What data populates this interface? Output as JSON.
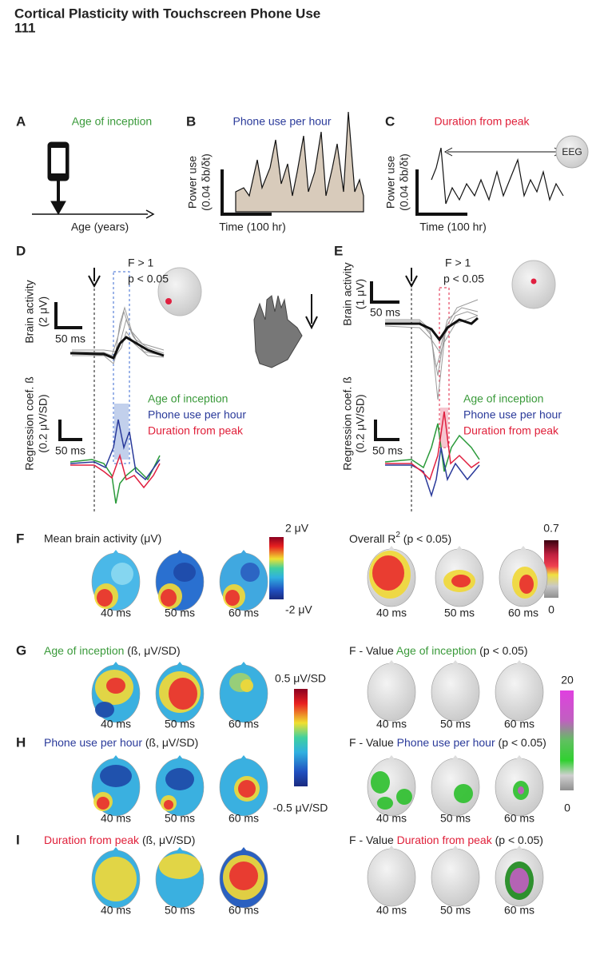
{
  "header": {
    "title": "Cortical Plasticity with Touchscreen Phone Use",
    "page": "111"
  },
  "panel_a": {
    "letter": "A",
    "title": "Age of inception",
    "x_label": "Age (years)"
  },
  "panel_b": {
    "letter": "B",
    "title": "Phone use per hour",
    "y_label": [
      "Power use",
      "(0.04 δb/δt)"
    ],
    "x_label": "Time (100 hr)"
  },
  "panel_c": {
    "letter": "C",
    "title": "Duration from peak",
    "y_label": [
      "Power use",
      "(0.04 δb/δt)"
    ],
    "x_label": "Time (100 hr)",
    "marker": "EEG"
  },
  "panel_d": {
    "letter": "D",
    "stats": [
      "F > 1",
      "p < 0.05"
    ],
    "brain_label": [
      "Brain activity",
      "(2 μV)"
    ],
    "brain_scale": "50 ms",
    "regression_label": [
      "Regression coef. ß",
      "(0.2 μV/SD)"
    ],
    "regression_scale": "50 ms",
    "legend": [
      "Age of inception",
      "Phone use per hour",
      "Duration from peak"
    ]
  },
  "panel_e": {
    "letter": "E",
    "stats": [
      "F > 1",
      "p < 0.05"
    ],
    "brain_label": [
      "Brain activity",
      "(1 μV)"
    ],
    "brain_scale": "50 ms",
    "regression_label": [
      "Regression coef. ß",
      "(0.2 μV/SD)"
    ],
    "regression_scale": "50 ms",
    "legend": [
      "Age of inception",
      "Phone use per hour",
      "Duration from peak"
    ]
  },
  "panel_f": {
    "letter": "F",
    "left_title": "Mean brain activity (μV)",
    "left_times": [
      "40 ms",
      "50 ms",
      "60 ms"
    ],
    "left_colorbar": [
      "2 μV",
      "-2 μV"
    ],
    "right_title": [
      "Overall R",
      "2",
      " (p < 0.05)"
    ],
    "right_times": [
      "40 ms",
      "50 ms",
      "60 ms"
    ],
    "right_colorbar": [
      "0.7",
      "0"
    ]
  },
  "panel_g": {
    "letter": "G",
    "left_title": [
      "Age of inception",
      " (ß, μV/SD)"
    ],
    "left_times": [
      "40 ms",
      "50 ms",
      "60 ms"
    ],
    "right_title": [
      "F - Value ",
      "Age of inception",
      " (p < 0.05)"
    ],
    "right_times": [
      "40 ms",
      "50 ms",
      "60 ms"
    ]
  },
  "panel_h": {
    "letter": "H",
    "left_title": [
      "Phone use per hour",
      " (ß, μV/SD)"
    ],
    "left_times": [
      "40 ms",
      "50 ms",
      "60 ms"
    ],
    "right_title": [
      "F - Value ",
      "Phone use per hour",
      " (p < 0.05)"
    ],
    "right_times": [
      "40 ms",
      "50 ms",
      "60 ms"
    ]
  },
  "panel_i": {
    "letter": "I",
    "left_title": [
      "Duration from peak",
      " (ß, μV/SD)"
    ],
    "left_times": [
      "40 ms",
      "50 ms",
      "60 ms"
    ],
    "right_title": [
      "F - Value ",
      "Duration from peak",
      " (p < 0.05)"
    ],
    "right_times": [
      "40 ms",
      "50 ms",
      "60 ms"
    ]
  },
  "colorbar_beta": [
    "0.5 μV/SD",
    "-0.5 μV/SD"
  ],
  "colorbar_f": [
    "20",
    "0"
  ]
}
